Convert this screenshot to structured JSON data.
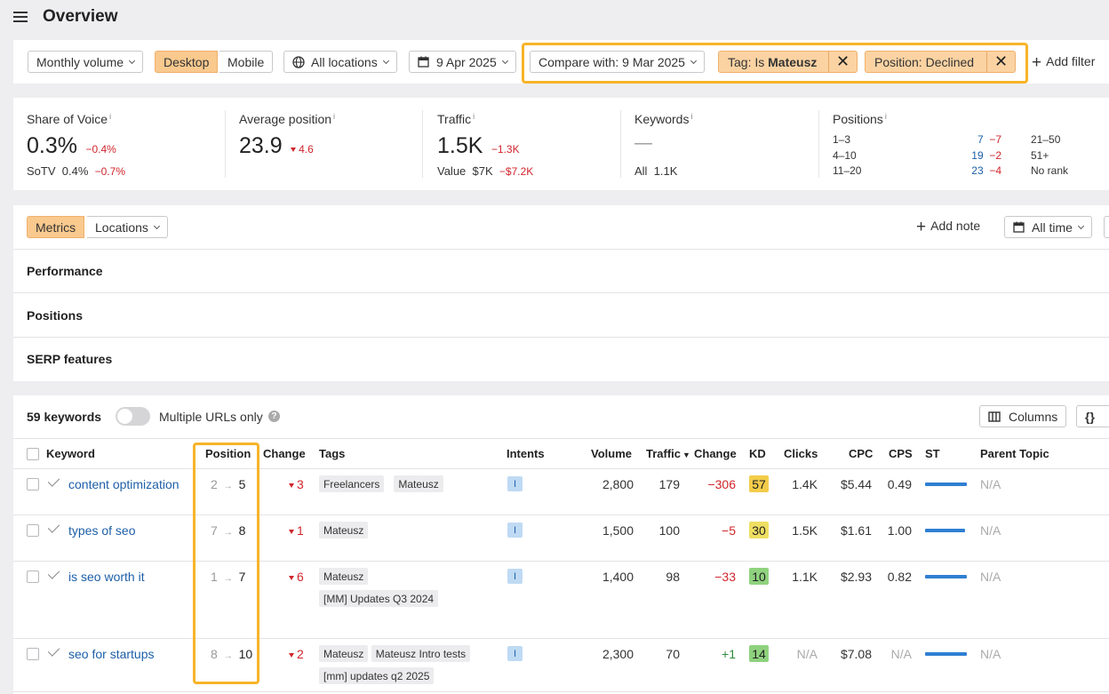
{
  "header": {
    "title": "Overview"
  },
  "filters": {
    "volume": "Monthly volume",
    "desktop": "Desktop",
    "mobile": "Mobile",
    "locations": "All locations",
    "date": "9 Apr 2025",
    "compare": "Compare with: 9 Mar 2025",
    "tag_prefix": "Tag: Is ",
    "tag_value": "Mateusz",
    "position_filter": "Position: Declined",
    "add_filter": "Add filter"
  },
  "stats": {
    "sov": {
      "label": "Share of Voice",
      "value": "0.3%",
      "change": "−0.4%",
      "sotv_label": "SoTV",
      "sotv_value": "0.4%",
      "sotv_change": "−0.7%"
    },
    "avgpos": {
      "label": "Average position",
      "value": "23.9",
      "change": "4.6"
    },
    "traffic": {
      "label": "Traffic",
      "value": "1.5K",
      "change": "−1.3K",
      "value_label": "Value",
      "value_value": "$7K",
      "value_change": "−$7.2K"
    },
    "keywords": {
      "label": "Keywords",
      "value": "—",
      "all_label": "All",
      "all_value": "1.1K"
    },
    "positions": {
      "label": "Positions",
      "r1": {
        "range": "1–3",
        "count": "7",
        "change": "−7"
      },
      "r2": {
        "range": "4–10",
        "count": "19",
        "change": "−2"
      },
      "r3": {
        "range": "11–20",
        "count": "23",
        "change": "−4"
      },
      "r4": "21–50",
      "r5": "51+",
      "r6": "No rank"
    }
  },
  "panel": {
    "metrics": "Metrics",
    "locations": "Locations",
    "add_note": "Add note",
    "all_time": "All time",
    "sections": [
      "Performance",
      "Positions",
      "SERP features"
    ]
  },
  "table": {
    "count": "59 keywords",
    "multiple_urls": "Multiple URLs only",
    "columns_btn": "Columns",
    "headers": {
      "keyword": "Keyword",
      "position": "Position",
      "change": "Change",
      "tags": "Tags",
      "intents": "Intents",
      "volume": "Volume",
      "traffic": "Traffic",
      "traffic_change": "Change",
      "kd": "KD",
      "clicks": "Clicks",
      "cpc": "CPC",
      "cps": "CPS",
      "st": "ST",
      "parent": "Parent Topic"
    },
    "rows": [
      {
        "keyword": "content optimization",
        "from": "2",
        "to": "5",
        "change": "3",
        "tags": [
          "Freelancers",
          "Mateusz"
        ],
        "intent": "I",
        "volume": "2,800",
        "traffic": "179",
        "tchange": "−306",
        "kd": "57",
        "kd_color": "#f3cc4a",
        "clicks": "1.4K",
        "cpc": "$5.44",
        "cps": "0.49",
        "st": 1.0,
        "parent": "N/A"
      },
      {
        "keyword": "types of seo",
        "from": "7",
        "to": "8",
        "change": "1",
        "tags": [
          "Mateusz"
        ],
        "intent": "I",
        "volume": "1,500",
        "traffic": "100",
        "tchange": "−5",
        "kd": "30",
        "kd_color": "#eede62",
        "clicks": "1.5K",
        "cpc": "$1.61",
        "cps": "1.00",
        "st": 0.96,
        "parent": "N/A"
      },
      {
        "keyword": "is seo worth it",
        "from": "1",
        "to": "7",
        "change": "6",
        "tags": [
          "Mateusz",
          "[MM] Updates Q3 2024"
        ],
        "intent": "I",
        "volume": "1,400",
        "traffic": "98",
        "tchange": "−33",
        "kd": "10",
        "kd_color": "#8fd27e",
        "clicks": "1.1K",
        "cpc": "$2.93",
        "cps": "0.82",
        "st": 1.0,
        "parent": "N/A"
      },
      {
        "keyword": "seo for startups",
        "from": "8",
        "to": "10",
        "change": "2",
        "tags": [
          "Mateusz",
          "Mateusz Intro tests",
          "[mm] updates q2 2025"
        ],
        "intent": "I",
        "volume": "2,300",
        "traffic": "70",
        "tchange": "+1",
        "kd": "14",
        "kd_color": "#8fd27e",
        "clicks": "N/A",
        "cpc": "$7.08",
        "cps": "N/A",
        "st": 1.0,
        "parent": "N/A"
      }
    ]
  }
}
